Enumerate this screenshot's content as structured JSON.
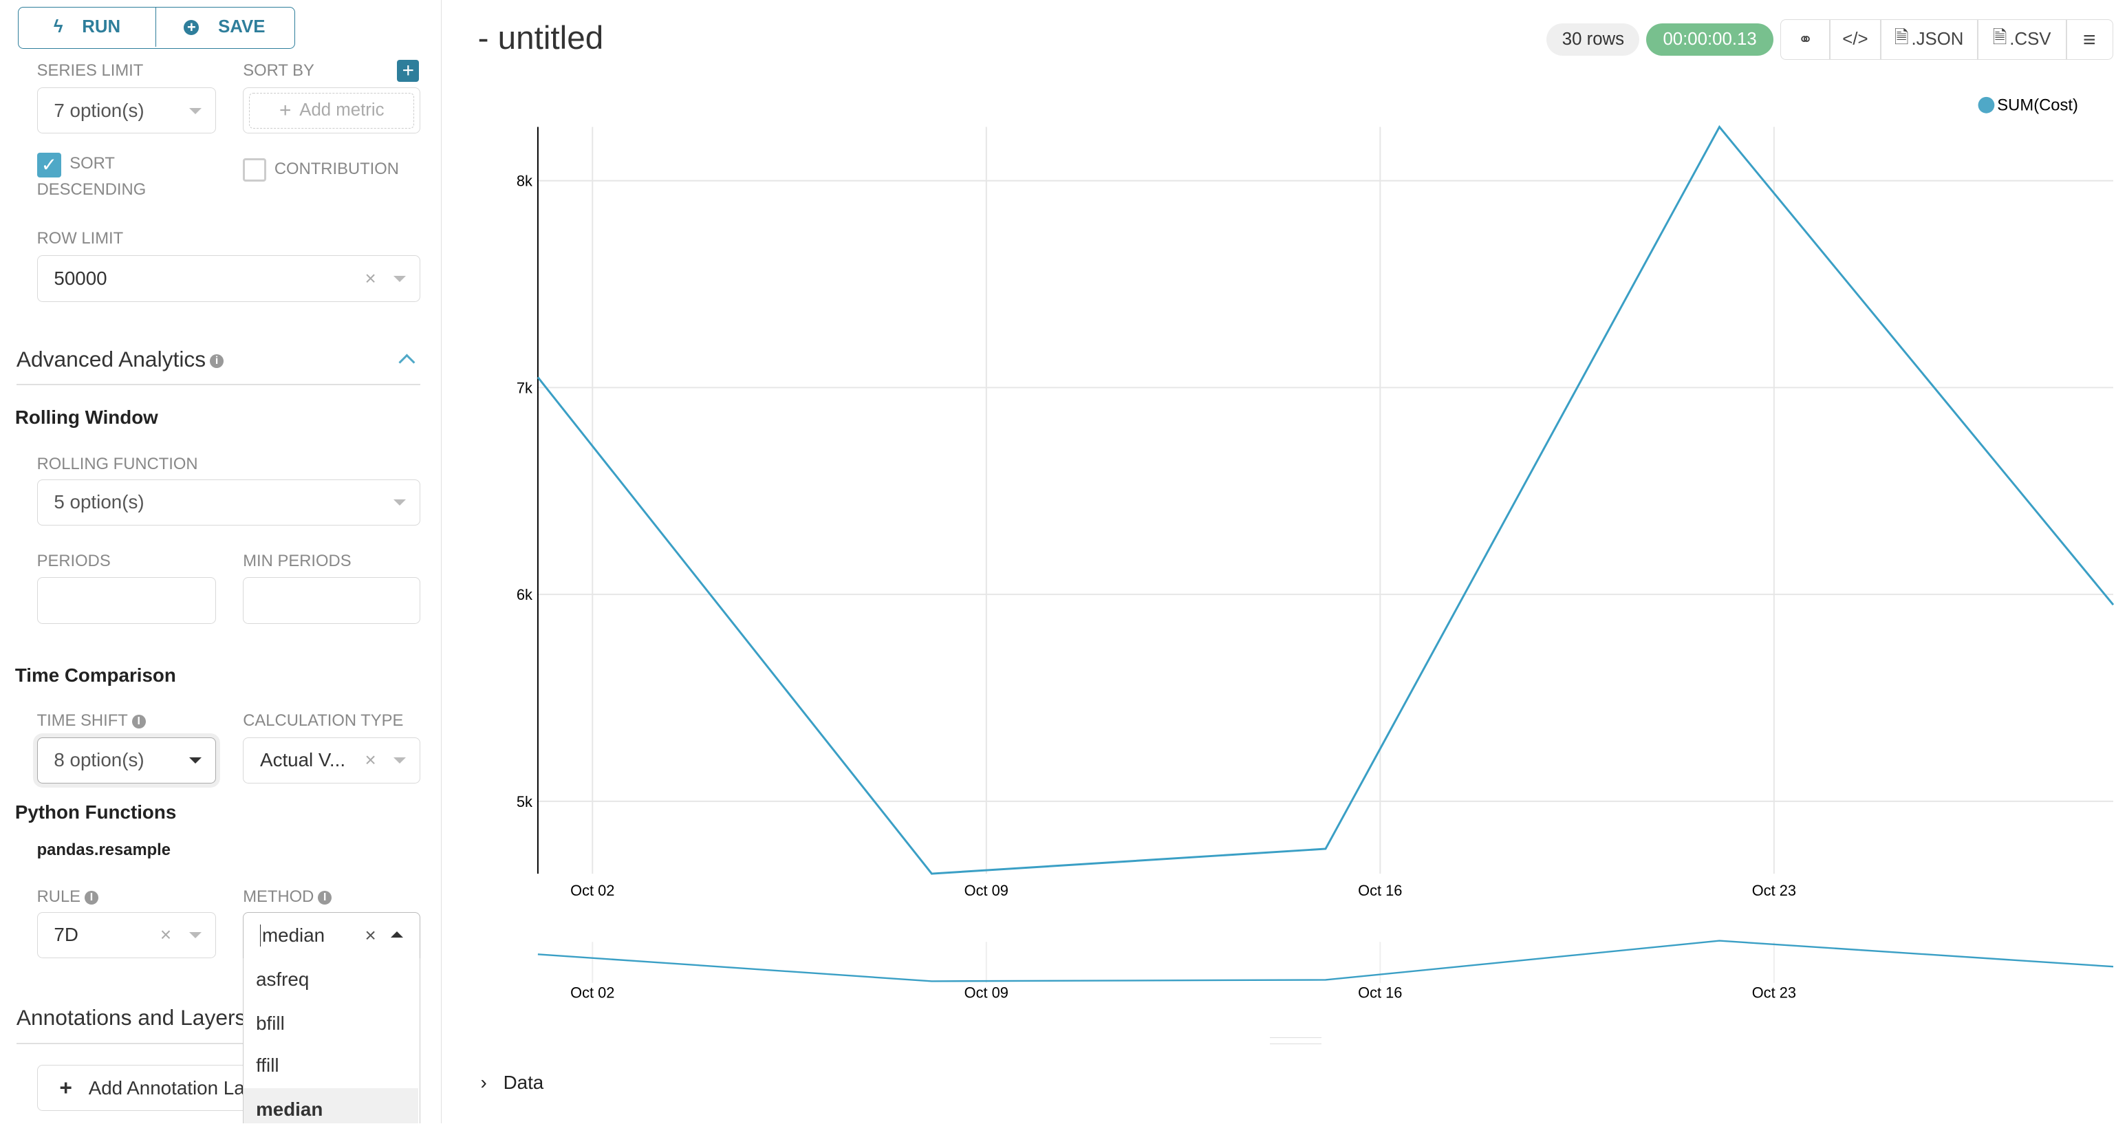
{
  "toolbar": {
    "run": "RUN",
    "save": "SAVE"
  },
  "controls": {
    "series_limit": {
      "label": "SERIES LIMIT",
      "value": "7 option(s)"
    },
    "sort_by": {
      "label": "SORT BY",
      "placeholder": "Add metric"
    },
    "sort_descending": {
      "label_line1": "SORT",
      "label_line2": "DESCENDING",
      "checked": true
    },
    "contribution": {
      "label": "CONTRIBUTION",
      "checked": false
    },
    "row_limit": {
      "label": "ROW LIMIT",
      "value": "50000"
    }
  },
  "advanced": {
    "title": "Advanced Analytics",
    "rolling_window": {
      "title": "Rolling Window",
      "function_label": "ROLLING FUNCTION",
      "function_value": "5 option(s)",
      "periods_label": "PERIODS",
      "min_periods_label": "MIN PERIODS",
      "periods": "",
      "min_periods": ""
    },
    "time_comparison": {
      "title": "Time Comparison",
      "time_shift_label": "TIME SHIFT",
      "time_shift_value": "8 option(s)",
      "calc_type_label": "CALCULATION TYPE",
      "calc_type_value": "Actual V..."
    },
    "python_functions": {
      "title": "Python Functions",
      "subtitle": "pandas.resample",
      "rule_label": "RULE",
      "rule_value": "7D",
      "method_label": "METHOD",
      "method_value": "median",
      "method_options": [
        "asfreq",
        "bfill",
        "ffill",
        "median"
      ],
      "method_selected": "median"
    }
  },
  "annotations": {
    "title": "Annotations and Layers",
    "add_button": "Add Annotation Layer"
  },
  "header": {
    "title": "- untitled",
    "rows": "30 rows",
    "timer": "00:00:00.13",
    "json": ".JSON",
    "csv": ".CSV"
  },
  "colors": {
    "accent": "#2e7e9b",
    "line": "#3a9fc5",
    "timer": "#78c08e"
  },
  "data_toggle": "Data",
  "chart_data": {
    "type": "line",
    "x": [
      "Oct 01",
      "Oct 08",
      "Oct 15",
      "Oct 22",
      "Oct 29"
    ],
    "series": [
      {
        "name": "SUM(Cost)",
        "values": [
          7050,
          4650,
          4770,
          8260,
          5950
        ]
      }
    ],
    "x_ticks": [
      "Oct 02",
      "Oct 09",
      "Oct 16",
      "Oct 23"
    ],
    "y_ticks": [
      "5k",
      "6k",
      "7k",
      "8k"
    ],
    "ylim": [
      4650,
      8260
    ],
    "grid": true,
    "legend": "top-right"
  }
}
